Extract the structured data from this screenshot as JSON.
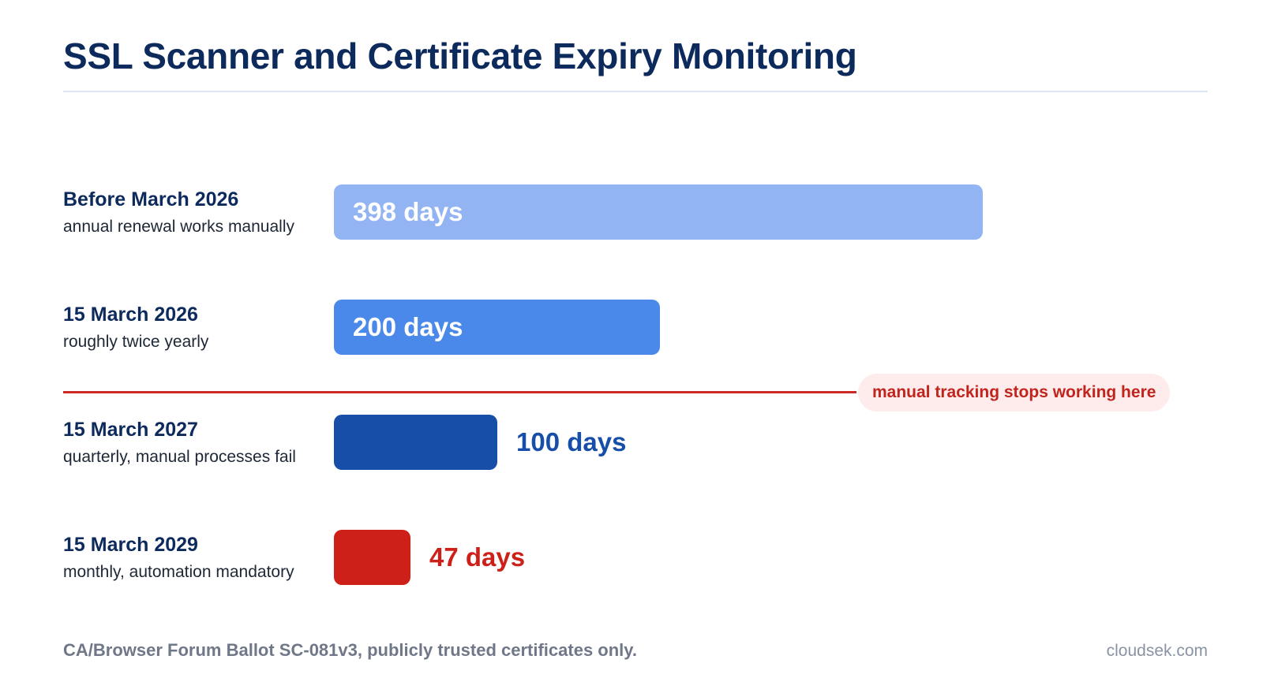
{
  "header": {
    "title": "SSL Scanner and Certificate Expiry Monitoring"
  },
  "chart_data": {
    "type": "bar",
    "orientation": "horizontal",
    "categories": [
      "Before March 2026",
      "15 March 2026",
      "15 March 2027",
      "15 March 2029"
    ],
    "descriptions": [
      "annual renewal works manually",
      "roughly twice yearly",
      "quarterly, manual processes fail",
      "monthly, automation mandatory"
    ],
    "values": [
      398,
      200,
      100,
      47
    ],
    "value_labels": [
      "398 days",
      "200 days",
      "100 days",
      "47 days"
    ],
    "unit": "days",
    "bar_colors": [
      "#93b4f2",
      "#4a89ea",
      "#164ea8",
      "#cc2018"
    ],
    "value_label_colors": [
      "#ffffff",
      "#ffffff",
      "#164ea8",
      "#cc2018"
    ],
    "value_label_placement": [
      "inside",
      "inside",
      "outside",
      "outside"
    ],
    "annotation": {
      "text": "manual tracking stops working here",
      "position": "between 15 March 2026 and 15 March 2027",
      "color": "#cc2a22"
    },
    "xlim": [
      0,
      398
    ],
    "grid": false,
    "legend": "none"
  },
  "footer": {
    "note": "CA/Browser Forum Ballot SC-081v3, publicly trusted certificates only.",
    "brand": "cloudsek.com"
  }
}
